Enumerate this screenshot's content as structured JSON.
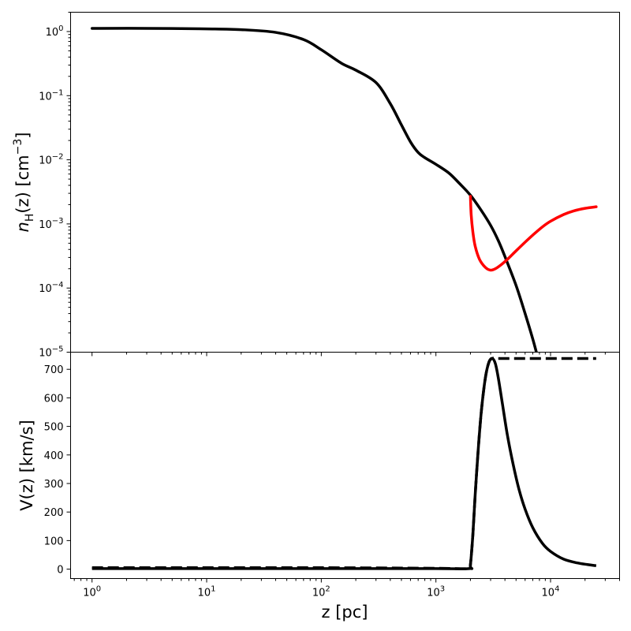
{
  "chart_data": [
    {
      "type": "line",
      "panel": "top",
      "ylabel": {
        "var": "n",
        "sub": "H",
        "mid": "(z) [cm",
        "sup": "−3",
        "end": "]"
      },
      "yscale": "log",
      "xscale": "log",
      "ylim": [
        1e-05,
        2
      ],
      "xlim": [
        0.65,
        40000
      ],
      "y_ticks": [
        {
          "value": 1,
          "base": "10",
          "exp": "0"
        },
        {
          "value": 0.1,
          "base": "10",
          "exp": "−1"
        },
        {
          "value": 0.01,
          "base": "10",
          "exp": "−2"
        },
        {
          "value": 0.001,
          "base": "10",
          "exp": "−3"
        },
        {
          "value": 0.0001,
          "base": "10",
          "exp": "−4"
        },
        {
          "value": 1e-05,
          "base": "10",
          "exp": "−5"
        }
      ],
      "series": [
        {
          "color": "#000000",
          "style": "solid",
          "x": [
            1,
            3,
            10,
            20,
            40,
            70,
            100,
            150,
            200,
            300,
            400,
            500,
            600,
            700,
            800,
            1000,
            1300,
            1600,
            2000,
            2500,
            3000,
            3500,
            4000,
            5000,
            6000,
            7000,
            7700
          ],
          "y": [
            1.12,
            1.12,
            1.1,
            1.07,
            0.97,
            0.75,
            0.52,
            0.32,
            0.25,
            0.16,
            0.075,
            0.035,
            0.019,
            0.013,
            0.0108,
            0.0085,
            0.0062,
            0.0043,
            0.0028,
            0.0016,
            0.00095,
            0.00055,
            0.00031,
            0.00011,
            4e-05,
            1.6e-05,
            8.5e-06
          ]
        },
        {
          "color": "#ff0000",
          "style": "solid",
          "x": [
            2000,
            2030,
            2100,
            2200,
            2400,
            2700,
            3000,
            3300,
            3700,
            4200,
            5000,
            6000,
            7000,
            8500,
            10000,
            13000,
            16000,
            20000,
            25000
          ],
          "y": [
            0.0027,
            0.0014,
            0.00075,
            0.00045,
            0.00028,
            0.00021,
            0.00019,
            0.0002,
            0.00023,
            0.00028,
            0.00038,
            0.00052,
            0.00067,
            0.0009,
            0.0011,
            0.0014,
            0.0016,
            0.00175,
            0.00185
          ]
        }
      ]
    },
    {
      "type": "line",
      "panel": "bottom",
      "xlabel": "z [pc]",
      "ylabel": "V(z) [km/s]",
      "xscale": "log",
      "yscale": "linear",
      "ylim": [
        -33,
        760
      ],
      "xlim": [
        0.65,
        40000
      ],
      "y_ticks": [
        "0",
        "100",
        "200",
        "300",
        "400",
        "500",
        "600",
        "700"
      ],
      "x_ticks": [
        {
          "value": 1,
          "base": "10",
          "exp": "0"
        },
        {
          "value": 10,
          "base": "10",
          "exp": "1"
        },
        {
          "value": 100,
          "base": "10",
          "exp": "2"
        },
        {
          "value": 1000,
          "base": "10",
          "exp": "3"
        },
        {
          "value": 10000,
          "base": "10",
          "exp": "4"
        }
      ],
      "series": [
        {
          "color": "#000000",
          "style": "solid",
          "x": [
            1,
            10,
            100,
            1000,
            1950,
            2000,
            2100,
            2200,
            2350,
            2500,
            2700,
            2900,
            3100,
            3300,
            3500,
            3800,
            4200,
            4700,
            5300,
            6000,
            7000,
            8500,
            10000,
            13000,
            17000,
            21000,
            25000
          ],
          "y": [
            2,
            2,
            2,
            2,
            2,
            15,
            120,
            260,
            430,
            560,
            670,
            725,
            738,
            720,
            670,
            580,
            470,
            370,
            280,
            210,
            145,
            90,
            62,
            35,
            22,
            16,
            12
          ]
        },
        {
          "color": "#000000",
          "style": "dashed",
          "x": [
            1,
            10,
            100,
            1000,
            1950,
            2000,
            2100,
            2200,
            2350,
            2500,
            2700,
            2900,
            3100,
            3300,
            4000,
            6000,
            10000,
            15000,
            20000,
            25000
          ],
          "y": [
            5,
            5,
            5,
            3,
            2,
            15,
            120,
            260,
            430,
            560,
            670,
            725,
            738,
            738,
            738,
            738,
            738,
            738,
            738,
            738
          ]
        }
      ]
    }
  ]
}
